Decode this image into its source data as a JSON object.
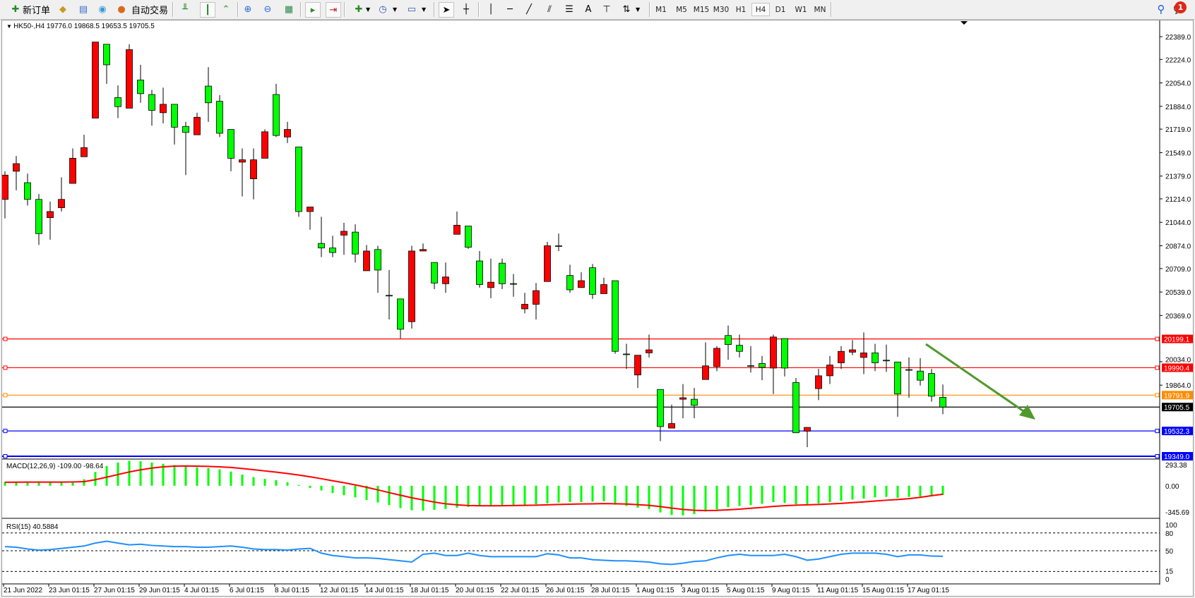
{
  "toolbar": {
    "new_order": "新订单",
    "auto_trading": "自动交易",
    "timeframes": [
      "M1",
      "M5",
      "M15",
      "M30",
      "H1",
      "H4",
      "D1",
      "W1",
      "MN"
    ],
    "active_timeframe": "H4",
    "notification_count": "1"
  },
  "chart": {
    "header": "HK50-,H4  19776.0 19868.5 19653.5 19705.5",
    "colors": {
      "bull": "#ff0000",
      "bear": "#00ff00",
      "wick": "#000000",
      "arrow": "#4f9a2a"
    },
    "price_axis_labels": [
      "22389.0",
      "22224.0",
      "22054.0",
      "21884.0",
      "21719.0",
      "21549.0",
      "21379.0",
      "21214.0",
      "21044.0",
      "20874.0",
      "20709.0",
      "20539.0",
      "20369.0",
      "20034.0",
      "19864.0"
    ],
    "levels": [
      {
        "price": 20199.1,
        "label": "20199.1",
        "color": "#ff0000"
      },
      {
        "price": 19990.4,
        "label": "19990.4",
        "color": "#ff0000"
      },
      {
        "price": 19791.9,
        "label": "19791.9",
        "color": "#ff8c00"
      },
      {
        "price": 19705.5,
        "label": "19705.5",
        "color": "#000000"
      },
      {
        "price": 19532.3,
        "label": "19532.3",
        "color": "#0000ff"
      },
      {
        "price": 19349.0,
        "label": "19349.0",
        "color": "#0000ff"
      }
    ],
    "candles": [
      [
        21210,
        21414,
        21073,
        21386
      ],
      [
        21414,
        21524,
        21276,
        21469
      ],
      [
        21331,
        21397,
        21166,
        21210
      ],
      [
        21210,
        21249,
        20880,
        20962
      ],
      [
        21078,
        21194,
        20918,
        21122
      ],
      [
        21150,
        21370,
        21122,
        21210
      ],
      [
        21326,
        21579,
        21326,
        21508
      ],
      [
        21519,
        21678,
        21519,
        21585
      ],
      [
        21799,
        22350,
        21799,
        22350
      ],
      [
        22334,
        22334,
        22047,
        22185
      ],
      [
        21948,
        22036,
        21799,
        21882
      ],
      [
        21871,
        22334,
        21871,
        22295
      ],
      [
        22075,
        22185,
        21910,
        21976
      ],
      [
        21970,
        22003,
        21744,
        21855
      ],
      [
        21838,
        22020,
        21761,
        21899
      ],
      [
        21899,
        21899,
        21607,
        21733
      ],
      [
        21739,
        21772,
        21386,
        21695
      ],
      [
        21678,
        21838,
        21678,
        21805
      ],
      [
        22031,
        22168,
        21772,
        21910
      ],
      [
        21921,
        21965,
        21662,
        21689
      ],
      [
        21717,
        21717,
        21414,
        21508
      ],
      [
        21480,
        21579,
        21232,
        21497
      ],
      [
        21359,
        21579,
        21210,
        21497
      ],
      [
        21508,
        21717,
        21508,
        21700
      ],
      [
        21970,
        22047,
        21662,
        21673
      ],
      [
        21662,
        21772,
        21618,
        21717
      ],
      [
        21590,
        21590,
        21084,
        21122
      ],
      [
        21122,
        21155,
        20990,
        21155
      ],
      [
        20891,
        21084,
        20792,
        20858
      ],
      [
        20858,
        20946,
        20792,
        20825
      ],
      [
        20951,
        21040,
        20808,
        20979
      ],
      [
        20973,
        21029,
        20753,
        20814
      ],
      [
        20693,
        20880,
        20693,
        20836
      ],
      [
        20847,
        20874,
        20533,
        20698
      ],
      [
        20515,
        20698,
        20340,
        20510
      ],
      [
        20489,
        20489,
        20202,
        20269
      ],
      [
        20324,
        20874,
        20274,
        20836
      ],
      [
        20836,
        20891,
        20836,
        20847
      ],
      [
        20753,
        20753,
        20560,
        20604
      ],
      [
        20599,
        20753,
        20533,
        20648
      ],
      [
        20957,
        21122,
        20957,
        21023
      ],
      [
        21017,
        21017,
        20852,
        20863
      ],
      [
        20764,
        20836,
        20571,
        20593
      ],
      [
        20571,
        20781,
        20494,
        20610
      ],
      [
        20748,
        20781,
        20560,
        20599
      ],
      [
        20600,
        20670,
        20505,
        20599
      ],
      [
        20417,
        20533,
        20384,
        20450
      ],
      [
        20450,
        20604,
        20340,
        20549
      ],
      [
        20615,
        20902,
        20615,
        20874
      ],
      [
        20874,
        20962,
        20836,
        20870
      ],
      [
        20659,
        20737,
        20533,
        20555
      ],
      [
        20571,
        20682,
        20571,
        20621
      ],
      [
        20715,
        20742,
        20489,
        20522
      ],
      [
        20527,
        20643,
        20527,
        20593
      ],
      [
        20621,
        20621,
        20092,
        20109
      ],
      [
        20090,
        20164,
        19982,
        20087
      ],
      [
        19938,
        20081,
        19844,
        20081
      ],
      [
        20098,
        20230,
        20065,
        20120
      ],
      [
        19833,
        19833,
        19459,
        19564
      ],
      [
        19553,
        19723,
        19553,
        19586
      ],
      [
        19762,
        19872,
        19624,
        19773
      ],
      [
        19762,
        19844,
        19624,
        19718
      ],
      [
        19905,
        20175,
        19905,
        20004
      ],
      [
        19999,
        20147,
        19966,
        20131
      ],
      [
        20224,
        20296,
        20048,
        20158
      ],
      [
        20153,
        20230,
        20065,
        20109
      ],
      [
        20005,
        20147,
        19955,
        20004
      ],
      [
        20021,
        20076,
        19900,
        19993
      ],
      [
        19988,
        20230,
        19800,
        20213
      ],
      [
        20202,
        20202,
        19927,
        19988
      ],
      [
        19883,
        19916,
        19519,
        19519
      ],
      [
        19531,
        19558,
        19415,
        19558
      ],
      [
        19839,
        19982,
        19756,
        19932
      ],
      [
        19932,
        20076,
        19872,
        20010
      ],
      [
        20026,
        20147,
        19982,
        20109
      ],
      [
        20103,
        20191,
        20081,
        20120
      ],
      [
        20065,
        20246,
        19944,
        20098
      ],
      [
        20098,
        20164,
        19966,
        20026
      ],
      [
        20045,
        20158,
        19960,
        20043
      ],
      [
        20032,
        20032,
        19635,
        19800
      ],
      [
        19977,
        20065,
        19773,
        19976
      ],
      [
        19966,
        20059,
        19861,
        19900
      ],
      [
        19949,
        19982,
        19745,
        19784
      ],
      [
        19776,
        19868.5,
        19653.5,
        19705.5
      ]
    ],
    "dates": [
      "21 Jun 2022",
      "23 Jun 01:15",
      "27 Jun 01:15",
      "29 Jun 01:15",
      "4 Jul 01:15",
      "6 Jul 01:15",
      "8 Jul 01:15",
      "12 Jul 01:15",
      "14 Jul 01:15",
      "18 Jul 01:15",
      "20 Jul 01:15",
      "22 Jul 01:15",
      "26 Jul 01:15",
      "28 Jul 01:15",
      "1 Aug 01:15",
      "3 Aug 01:15",
      "5 Aug 01:15",
      "9 Aug 01:15",
      "11 Aug 01:15",
      "15 Aug 01:15",
      "17 Aug 01:15"
    ]
  },
  "macd": {
    "label": "MACD(12,26,9) -109.00 -98.64",
    "axis_labels": [
      "293.38",
      "0.00",
      "-345.69"
    ],
    "range": [
      -345.69,
      293.38
    ],
    "colors": {
      "histogram": "#00ff00",
      "signal": "#ff0000"
    },
    "histogram": [
      45,
      48,
      45,
      42,
      40,
      42,
      50,
      75,
      160,
      230,
      270,
      290,
      285,
      270,
      255,
      240,
      225,
      215,
      205,
      190,
      165,
      130,
      100,
      80,
      65,
      40,
      10,
      -25,
      -55,
      -85,
      -110,
      -135,
      -165,
      -195,
      -225,
      -260,
      -285,
      -290,
      -280,
      -270,
      -255,
      -245,
      -240,
      -235,
      -230,
      -225,
      -225,
      -215,
      -205,
      -195,
      -190,
      -190,
      -185,
      -180,
      -220,
      -235,
      -255,
      -270,
      -310,
      -340,
      -345,
      -330,
      -300,
      -275,
      -250,
      -235,
      -225,
      -210,
      -190,
      -200,
      -215,
      -225,
      -205,
      -190,
      -175,
      -160,
      -150,
      -135,
      -130,
      -140,
      -130,
      -125,
      -120,
      -109
    ],
    "signal": [
      40,
      41,
      42,
      42,
      42,
      42,
      44,
      48,
      70,
      100,
      130,
      160,
      185,
      205,
      220,
      228,
      230,
      228,
      225,
      220,
      212,
      200,
      187,
      172,
      158,
      142,
      124,
      104,
      82,
      58,
      35,
      10,
      -18,
      -48,
      -80,
      -110,
      -140,
      -165,
      -190,
      -210,
      -222,
      -230,
      -232,
      -233,
      -232,
      -230,
      -228,
      -226,
      -222,
      -218,
      -215,
      -212,
      -210,
      -207,
      -209,
      -213,
      -220,
      -228,
      -242,
      -260,
      -275,
      -285,
      -288,
      -286,
      -280,
      -272,
      -262,
      -252,
      -240,
      -232,
      -226,
      -222,
      -218,
      -212,
      -205,
      -196,
      -188,
      -178,
      -168,
      -160,
      -150,
      -135,
      -115,
      -98.64
    ]
  },
  "rsi": {
    "label": "RSI(15) 40.5884",
    "axis_labels": [
      "100",
      "80",
      "50",
      "15",
      "0"
    ],
    "levels": [
      80,
      50,
      15
    ],
    "color": "#1e90ff",
    "values": [
      57,
      56,
      53,
      51,
      52,
      54,
      56,
      58,
      63,
      66,
      63,
      60,
      61,
      59,
      58,
      57,
      57,
      56,
      56,
      57,
      58,
      56,
      53,
      52,
      52,
      51,
      53,
      54,
      46,
      42,
      40,
      38,
      38,
      37,
      35,
      33,
      31,
      44,
      46,
      42,
      42,
      46,
      42,
      40,
      40,
      40,
      40,
      40,
      45,
      43,
      38,
      38,
      35,
      34,
      33,
      33,
      32,
      31,
      28,
      27,
      29,
      32,
      33,
      38,
      42,
      44,
      42,
      42,
      42,
      44,
      40,
      34,
      36,
      40,
      44,
      46,
      46,
      46,
      44,
      40,
      43,
      43,
      41,
      40.59
    ]
  }
}
